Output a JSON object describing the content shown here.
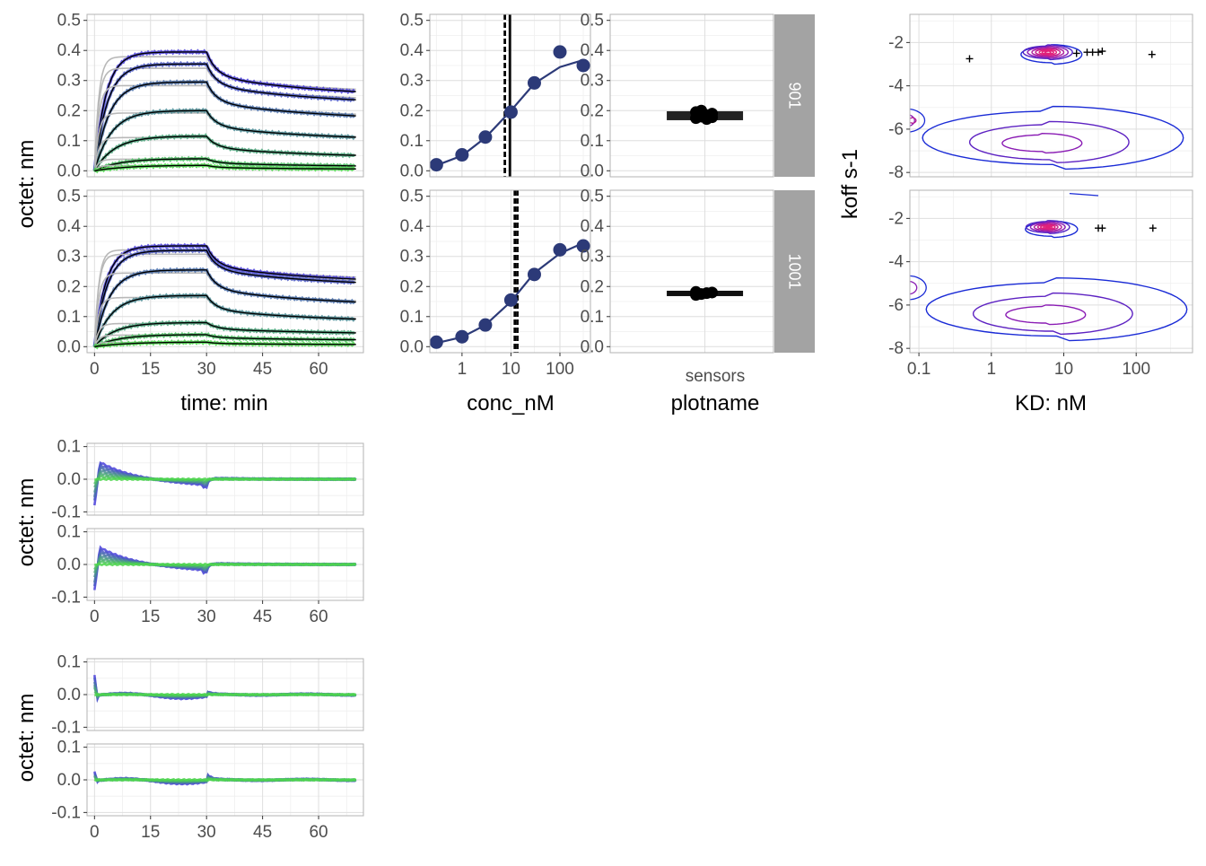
{
  "colors": {
    "panel_border": "#b3b3b3",
    "grid_major": "#dedede",
    "grid_minor": "#efefef",
    "strip_bg": "#a3a3a3",
    "strip_text": "#ffffff",
    "tick_text": "#4d4d4d",
    "title_text": "#000000",
    "fit_dark": "#2c3a78",
    "fit_line": "#000000",
    "fit_gray": "#b8b8b8",
    "conc_high": "#4a3fdc",
    "conc_low": "#4cd64b",
    "contour_low": "#1a2bd6",
    "contour_mid": "#8a1cb4",
    "contour_high": "#e0207a"
  },
  "labels": {
    "octet_nm": "octet: nm",
    "time_min": "time: min",
    "conc_nM": "conc_nM",
    "plotname": "plotname",
    "KD_nM": "KD: nM",
    "koff": "koff s-1",
    "sensors": "sensors",
    "strip_901": "901",
    "strip_1001": "1001"
  },
  "chart_data": [
    {
      "id": "sensorgrams",
      "type": "line",
      "facets": [
        "901",
        "1001"
      ],
      "xlabel": "time: min",
      "ylabel": "octet: nm",
      "xlim": [
        -2,
        72
      ],
      "ylim": [
        -0.02,
        0.52
      ],
      "xticks": [
        0,
        15,
        30,
        45,
        60
      ],
      "yticks": [
        0.0,
        0.1,
        0.2,
        0.3,
        0.4,
        0.5
      ],
      "ytick_labels": [
        "0.0",
        "0.1",
        "0.2",
        "0.3",
        "0.4",
        "0.5"
      ],
      "association_end_min": 30,
      "series": [
        {
          "facet": "901",
          "plateau_at_30": [
            0.395,
            0.355,
            0.295,
            0.2,
            0.115,
            0.04,
            0.018
          ],
          "end_at_70": [
            0.24,
            0.215,
            0.163,
            0.096,
            0.04,
            0.012,
            0.004
          ]
        },
        {
          "facet": "1001",
          "plateau_at_30": [
            0.335,
            0.32,
            0.255,
            0.17,
            0.08,
            0.04,
            0.015
          ],
          "end_at_70": [
            0.205,
            0.195,
            0.13,
            0.078,
            0.04,
            0.02,
            0.006
          ]
        }
      ]
    },
    {
      "id": "dose_response",
      "type": "scatter",
      "facets": [
        "901",
        "1001"
      ],
      "xlabel": "conc_nM",
      "xscale": "log",
      "xticks": [
        1,
        10,
        100
      ],
      "xtick_labels": [
        "1",
        "10",
        "100"
      ],
      "ylim": [
        -0.02,
        0.52
      ],
      "yticks": [
        0.0,
        0.1,
        0.2,
        0.3,
        0.4,
        0.5
      ],
      "ytick_labels": [
        "0.0",
        "0.1",
        "0.2",
        "0.3",
        "0.4",
        "0.5"
      ],
      "x": [
        0.3,
        1,
        3,
        10,
        30,
        100,
        300
      ],
      "series": [
        {
          "facet": "901",
          "points": [
            0.02,
            0.053,
            0.112,
            0.195,
            0.292,
            0.395,
            0.35
          ],
          "fit": [
            0.018,
            0.05,
            0.11,
            0.2,
            0.29,
            0.345,
            0.368
          ],
          "kd_lines": [
            7.5,
            9.5
          ]
        },
        {
          "facet": "1001",
          "points": [
            0.015,
            0.033,
            0.072,
            0.155,
            0.24,
            0.322,
            0.335
          ],
          "fit": [
            0.012,
            0.032,
            0.072,
            0.15,
            0.245,
            0.31,
            0.345
          ],
          "kd_lines": [
            12,
            13.5
          ]
        }
      ]
    },
    {
      "id": "plotname_summary",
      "type": "scatter",
      "facets": [
        "901",
        "1001"
      ],
      "xlabel": "plotname",
      "categories": [
        "sensors"
      ],
      "ylim": [
        -0.02,
        0.52
      ],
      "yticks": [
        0.0,
        0.1,
        0.2,
        0.3,
        0.4,
        0.5
      ],
      "ytick_labels": [
        "0.0",
        "0.1",
        "0.2",
        "0.3",
        "0.4",
        "0.5"
      ],
      "series": [
        {
          "facet": "901",
          "median": 0.183,
          "points": [
            0.175,
            0.18,
            0.185,
            0.19,
            0.195,
            0.2,
            0.172,
            0.178
          ]
        },
        {
          "facet": "1001",
          "median": 0.177,
          "points": [
            0.172,
            0.175,
            0.178,
            0.18,
            0.182
          ]
        }
      ]
    },
    {
      "id": "kd_koff_density",
      "type": "contour",
      "facets": [
        "901",
        "1001"
      ],
      "xlabel": "KD: nM",
      "ylabel": "koff s-1",
      "xscale": "log",
      "xlim": [
        0.075,
        600
      ],
      "xticks": [
        0.1,
        1,
        10,
        100
      ],
      "xtick_labels": [
        "0.1",
        "1",
        "10",
        "100"
      ],
      "ylim": [
        -8.2,
        -0.7
      ],
      "yticks": [
        -2,
        -4,
        -6,
        -8
      ],
      "ytick_labels": [
        "-2",
        "-4",
        "-6",
        "-8"
      ],
      "series": [
        {
          "facet": "901",
          "crosses": [
            [
              0.5,
              -2.75
            ],
            [
              15,
              -2.5
            ],
            [
              21,
              -2.45
            ],
            [
              25,
              -2.45
            ],
            [
              30,
              -2.45
            ],
            [
              34,
              -2.4
            ],
            [
              165,
              -2.55
            ]
          ]
        },
        {
          "facet": "1001",
          "crosses": [
            [
              30,
              -2.45
            ],
            [
              34,
              -2.45
            ],
            [
              170,
              -2.45
            ]
          ]
        }
      ]
    },
    {
      "id": "residuals_a",
      "type": "line",
      "facets": [
        "901",
        "1001"
      ],
      "ylabel": "octet: nm",
      "xlim": [
        -2,
        72
      ],
      "ylim": [
        -0.11,
        0.11
      ],
      "xticks": [
        0,
        15,
        30,
        45,
        60
      ],
      "yticks": [
        -0.1,
        0.0,
        0.1
      ],
      "ytick_labels": [
        "-0.1",
        "0.0",
        "0.1"
      ]
    },
    {
      "id": "residuals_b",
      "type": "line",
      "facets": [
        "901",
        "1001"
      ],
      "ylabel": "octet: nm",
      "xlim": [
        -2,
        72
      ],
      "ylim": [
        -0.11,
        0.11
      ],
      "xticks": [
        0,
        15,
        30,
        45,
        60
      ],
      "yticks": [
        -0.1,
        0.0,
        0.1
      ],
      "ytick_labels": [
        "-0.1",
        "0.0",
        "0.1"
      ]
    }
  ]
}
